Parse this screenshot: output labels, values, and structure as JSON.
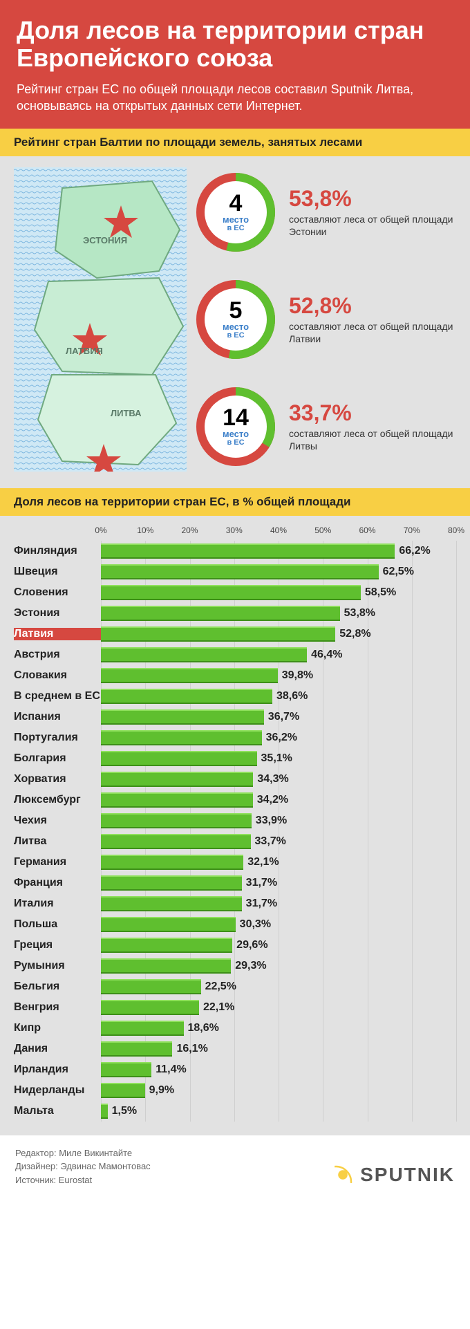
{
  "colors": {
    "header_bg": "#d64840",
    "subheader_bg": "#f8cf44",
    "panel_bg": "#e2e2e2",
    "bar_fill": "#5fbf2f",
    "highlight_bg": "#d64840",
    "donut_green": "#5fbf2f",
    "donut_red": "#d64840",
    "grid": "#cfcfcf",
    "text": "#222222"
  },
  "header": {
    "title": "Доля лесов на территории стран Европейского союза",
    "subtitle": "Рейтинг стран ЕС по общей площади лесов составил Sputnik Литва, основываясь на открытых данных сети Интернет."
  },
  "baltic_section": {
    "title": "Рейтинг стран Балтии по площади земель, занятых лесами",
    "map_labels": {
      "estonia": "ЭСТОНИЯ",
      "latvia": "ЛАТВИЯ",
      "lithuania": "ЛИТВА"
    },
    "donut_label_top": "место",
    "donut_label_bottom": "в ЕС",
    "entries": [
      {
        "rank": "4",
        "pct_value": 53.8,
        "pct_label": "53,8%",
        "desc": "составляют леса от общей площади Эстонии"
      },
      {
        "rank": "5",
        "pct_value": 52.8,
        "pct_label": "52,8%",
        "desc": "составляют леса от общей площади Латвии"
      },
      {
        "rank": "14",
        "pct_value": 33.7,
        "pct_label": "33,7%",
        "desc": "составляют леса от общей площади Литвы"
      }
    ]
  },
  "bar_section": {
    "title": "Доля лесов на территории стран ЕС, в % общей площади",
    "axis_max": 80,
    "axis_step": 10,
    "axis_tick_labels": [
      "0%",
      "10%",
      "20%",
      "30%",
      "40%",
      "50%",
      "60%",
      "70%",
      "80%"
    ],
    "highlight": "Латвия",
    "rows": [
      {
        "label": "Финляндия",
        "value": 66.2,
        "display": "66,2%"
      },
      {
        "label": "Швеция",
        "value": 62.5,
        "display": "62,5%"
      },
      {
        "label": "Словения",
        "value": 58.5,
        "display": "58,5%"
      },
      {
        "label": "Эстония",
        "value": 53.8,
        "display": "53,8%"
      },
      {
        "label": "Латвия",
        "value": 52.8,
        "display": "52,8%"
      },
      {
        "label": "Австрия",
        "value": 46.4,
        "display": "46,4%"
      },
      {
        "label": "Словакия",
        "value": 39.8,
        "display": "39,8%"
      },
      {
        "label": "В среднем в ЕС",
        "value": 38.6,
        "display": "38,6%"
      },
      {
        "label": "Испания",
        "value": 36.7,
        "display": "36,7%"
      },
      {
        "label": "Португалия",
        "value": 36.2,
        "display": "36,2%"
      },
      {
        "label": "Болгария",
        "value": 35.1,
        "display": "35,1%"
      },
      {
        "label": "Хорватия",
        "value": 34.3,
        "display": "34,3%"
      },
      {
        "label": "Люксембург",
        "value": 34.2,
        "display": "34,2%"
      },
      {
        "label": "Чехия",
        "value": 33.9,
        "display": "33,9%"
      },
      {
        "label": "Литва",
        "value": 33.7,
        "display": "33,7%"
      },
      {
        "label": "Германия",
        "value": 32.1,
        "display": "32,1%"
      },
      {
        "label": "Франция",
        "value": 31.7,
        "display": "31,7%"
      },
      {
        "label": "Италия",
        "value": 31.7,
        "display": "31,7%"
      },
      {
        "label": "Польша",
        "value": 30.3,
        "display": "30,3%"
      },
      {
        "label": "Греция",
        "value": 29.6,
        "display": "29,6%"
      },
      {
        "label": "Румыния",
        "value": 29.3,
        "display": "29,3%"
      },
      {
        "label": "Бельгия",
        "value": 22.5,
        "display": "22,5%"
      },
      {
        "label": "Венгрия",
        "value": 22.1,
        "display": "22,1%"
      },
      {
        "label": "Кипр",
        "value": 18.6,
        "display": "18,6%"
      },
      {
        "label": "Дания",
        "value": 16.1,
        "display": "16,1%"
      },
      {
        "label": "Ирландия",
        "value": 11.4,
        "display": "11,4%"
      },
      {
        "label": "Нидерланды",
        "value": 9.9,
        "display": "9,9%"
      },
      {
        "label": "Мальта",
        "value": 1.5,
        "display": "1,5%"
      }
    ]
  },
  "footer": {
    "editor_label": "Редактор:",
    "editor": "Миле Викинтайте",
    "designer_label": "Дизайнер:",
    "designer": "Эдвинас Мамонтовас",
    "source_label": "Источник:",
    "source": "Eurostat",
    "logo_text": "SPUTNIK"
  }
}
